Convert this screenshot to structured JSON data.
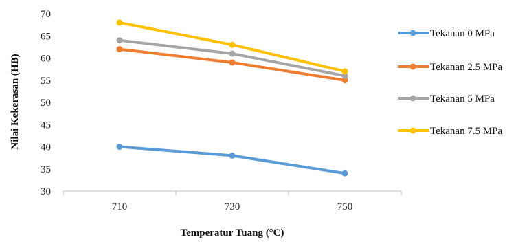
{
  "chart_data": {
    "type": "line",
    "title": "",
    "xlabel": "Temperatur Tuang (°C)",
    "ylabel": "Nilai Kekerasan (HB)",
    "categories": [
      "710",
      "730",
      "750"
    ],
    "ylim": [
      30,
      70
    ],
    "yticks": [
      30,
      35,
      40,
      45,
      50,
      55,
      60,
      65,
      70
    ],
    "grid": false,
    "legend_position": "right",
    "series": [
      {
        "name": "Tekanan 0 MPa",
        "color": "#5b9bd5",
        "values": [
          40,
          38,
          34
        ]
      },
      {
        "name": "Tekanan 2.5 MPa",
        "color": "#ed7d31",
        "values": [
          62,
          59,
          55
        ]
      },
      {
        "name": "Tekanan 5 MPa",
        "color": "#a5a5a5",
        "values": [
          64,
          61,
          56
        ]
      },
      {
        "name": "Tekanan 7.5 MPa",
        "color": "#ffc000",
        "values": [
          68,
          63,
          57
        ]
      }
    ]
  }
}
